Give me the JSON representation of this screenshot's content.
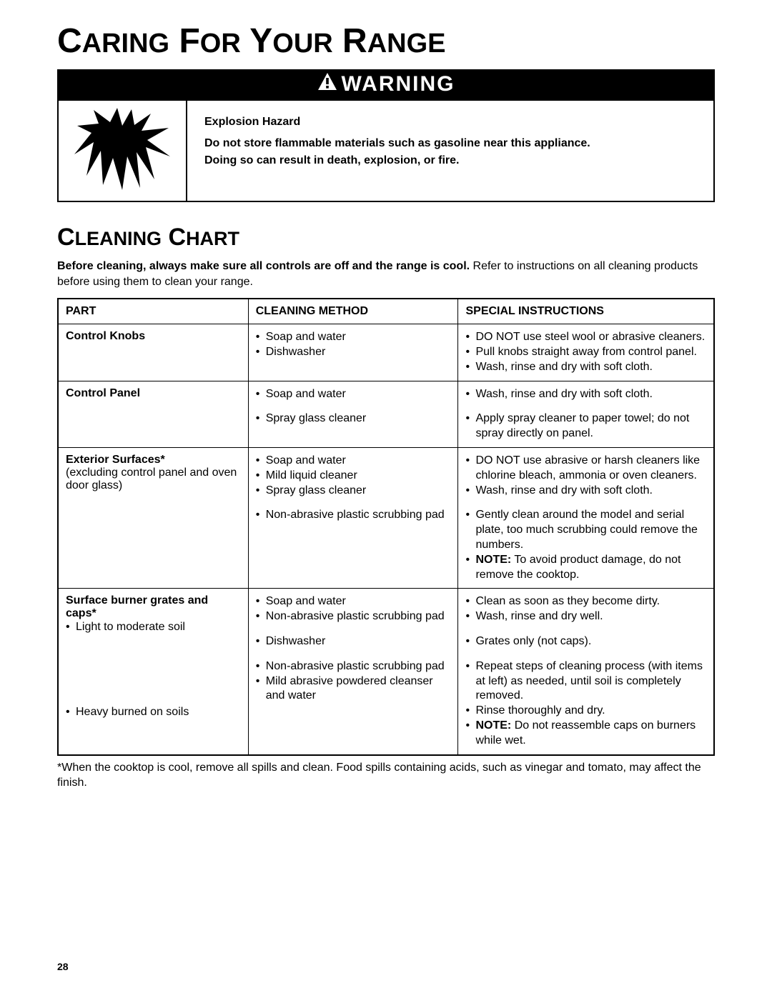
{
  "page": {
    "main_title_a": "C",
    "main_title_b": "ARING",
    "main_title_c": " F",
    "main_title_d": "OR",
    "main_title_e": " Y",
    "main_title_f": "OUR",
    "main_title_g": " R",
    "main_title_h": "ANGE",
    "warning_label": "WARNING",
    "warning_heading": "Explosion Hazard",
    "warning_line1": "Do not store flammable materials such as gasoline near this appliance.",
    "warning_line2": "Doing so can result in death, explosion, or fire.",
    "section_title_a": "C",
    "section_title_b": "LEANING",
    "section_title_c": " C",
    "section_title_d": "HART",
    "intro_bold": "Before cleaning, always make sure all controls are off and the range is cool.",
    "intro_rest": " Refer to instructions on all cleaning products before using them to clean your range.",
    "page_number": "28",
    "footnote": "*When the cooktop is cool, remove all spills and clean. Food spills containing acids, such as vinegar and tomato, may affect the finish."
  },
  "table": {
    "columns": [
      "PART",
      "CLEANING METHOD",
      "SPECIAL INSTRUCTIONS"
    ],
    "rows": [
      {
        "part_title": "Control Knobs",
        "part_sub": "",
        "method_groups": [
          {
            "items": [
              "Soap and water",
              "Dishwasher"
            ]
          }
        ],
        "instr_groups": [
          {
            "items": [
              "DO NOT use steel wool or abrasive cleaners.",
              "Pull knobs straight away from control panel.",
              "Wash, rinse and dry with soft cloth."
            ]
          }
        ]
      },
      {
        "part_title": "Control Panel",
        "part_sub": "",
        "method_groups": [
          {
            "items": [
              "Soap and water"
            ]
          },
          {
            "items": [
              "Spray glass cleaner"
            ]
          }
        ],
        "instr_groups": [
          {
            "items": [
              "Wash, rinse and dry with soft cloth."
            ]
          },
          {
            "items": [
              "Apply spray cleaner to paper towel; do not spray directly on panel."
            ]
          }
        ]
      },
      {
        "part_title": "Exterior Surfaces*",
        "part_sub": "(excluding control panel and oven door glass)",
        "method_groups": [
          {
            "items": [
              "Soap and water",
              "Mild liquid cleaner",
              "Spray glass cleaner"
            ]
          },
          {
            "items": [
              "Non-abrasive plastic scrubbing pad"
            ]
          }
        ],
        "instr_groups": [
          {
            "items": [
              "DO NOT use abrasive or harsh cleaners like chlorine bleach, ammonia or oven cleaners.",
              "Wash, rinse and dry with soft cloth."
            ]
          },
          {
            "items": [
              "Gently clean around the model and serial plate, too much scrubbing could remove the numbers.",
              "<b>NOTE:</b> To avoid product damage, do not remove the cooktop."
            ]
          }
        ]
      },
      {
        "part_title": "Surface burner grates and caps*",
        "part_sub_bullets": [
          "Light to moderate soil"
        ],
        "part_sub_bullets2": [
          "Heavy burned on soils"
        ],
        "method_groups": [
          {
            "items": [
              "Soap and water",
              "Non-abrasive plastic scrubbing pad"
            ]
          },
          {
            "items": [
              "Dishwasher"
            ]
          },
          {
            "items": [
              "Non-abrasive plastic scrubbing pad",
              "Mild abrasive powdered cleanser and water"
            ]
          }
        ],
        "instr_groups": [
          {
            "items": [
              "Clean as soon as they become dirty.",
              "Wash, rinse and dry well."
            ]
          },
          {
            "items": [
              "Grates only (not caps)."
            ]
          },
          {
            "items": [
              "Repeat steps of cleaning process (with items at left) as needed, until soil is completely removed.",
              "Rinse thoroughly and dry.",
              "<b>NOTE:</b> Do not reassemble caps on burners while wet."
            ]
          }
        ]
      }
    ]
  },
  "colors": {
    "black": "#000000",
    "white": "#ffffff"
  }
}
